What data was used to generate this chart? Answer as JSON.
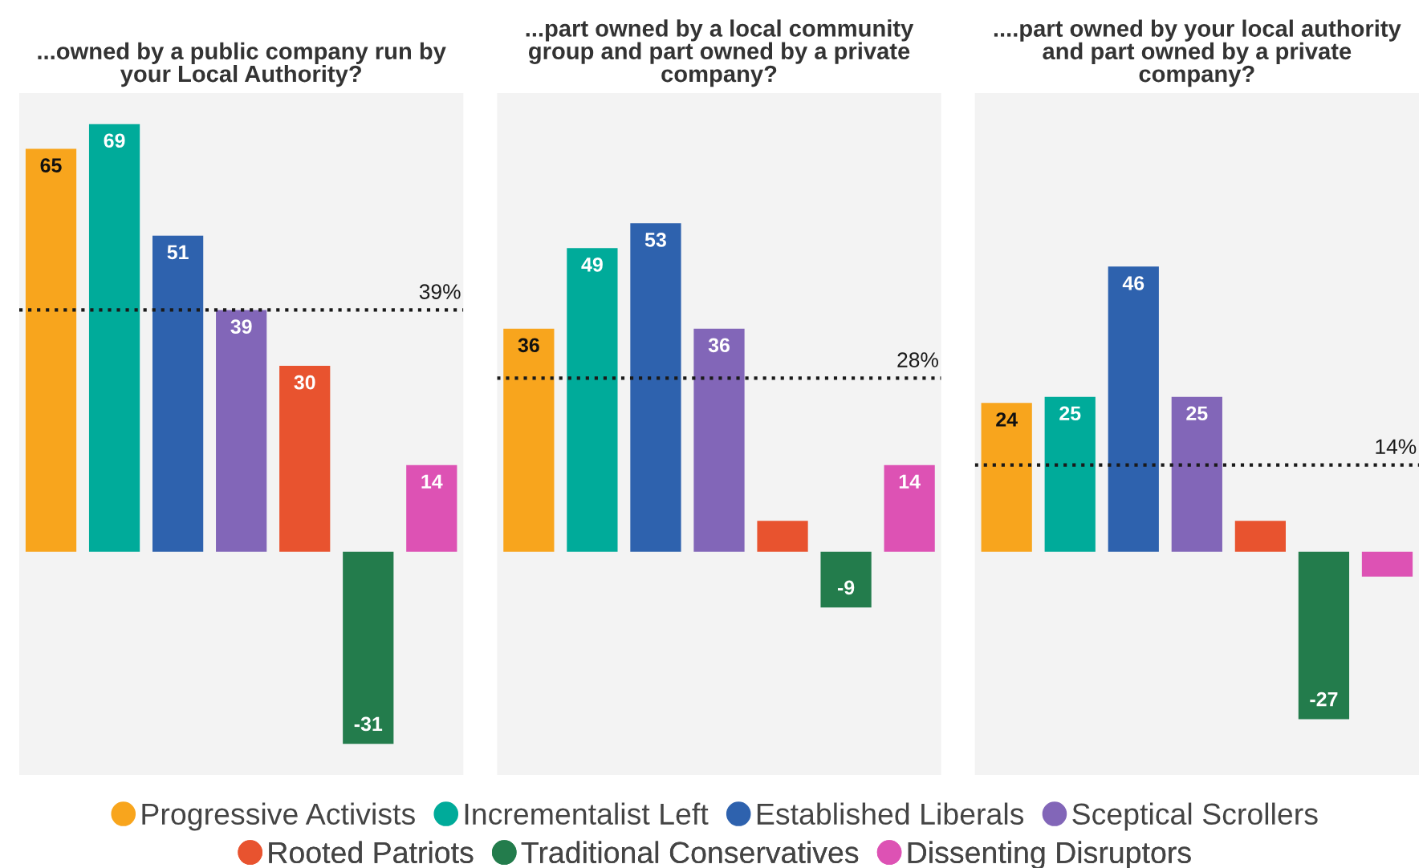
{
  "chart_data": [
    {
      "type": "bar",
      "title": "...owned by a public company run by\nyour Local Authority?",
      "categories": [
        null
      ],
      "legend": "bottom",
      "series": [
        {
          "name": "Progressive Activists",
          "color": "#f8a51d",
          "values": [
            65
          ],
          "value_labels": [
            "65"
          ]
        },
        {
          "name": "Incrementalist Left",
          "color": "#00ab9a",
          "values": [
            69
          ],
          "value_labels": [
            "69"
          ]
        },
        {
          "name": "Established Liberals",
          "color": "#2e62ae",
          "values": [
            51
          ],
          "value_labels": [
            "51"
          ]
        },
        {
          "name": "Sceptical Scrollers",
          "color": "#8266b8",
          "values": [
            39
          ],
          "value_labels": [
            "39"
          ]
        },
        {
          "name": "Rooted Patriots",
          "color": "#e8532f",
          "values": [
            30
          ],
          "value_labels": [
            "30"
          ]
        },
        {
          "name": "Traditional Conservatives",
          "color": "#237c4c",
          "values": [
            -31
          ],
          "value_labels": [
            "-31"
          ]
        },
        {
          "name": "Dissenting Disruptors",
          "color": "#dd52b4",
          "values": [
            14
          ],
          "value_labels": [
            "14"
          ]
        }
      ],
      "ref_lines": [
        {
          "axis": "y",
          "value": 39,
          "label": "39%",
          "color": "#1a1a1a",
          "line_style": "dotted"
        }
      ]
    },
    {
      "type": "bar",
      "title": "...part owned by a local community\ngroup and part owned by a private\ncompany?",
      "categories": [
        null
      ],
      "series": [
        {
          "color": "#f8a51d",
          "values": [
            36
          ],
          "value_labels": [
            "36"
          ]
        },
        {
          "color": "#00ab9a",
          "values": [
            49
          ],
          "value_labels": [
            "49"
          ]
        },
        {
          "color": "#2e62ae",
          "values": [
            53
          ],
          "value_labels": [
            "53"
          ]
        },
        {
          "color": "#8266b8",
          "values": [
            36
          ],
          "value_labels": [
            "36"
          ]
        },
        {
          "color": "#e8532f",
          "values": [
            5
          ],
          "value_labels": [
            null
          ]
        },
        {
          "color": "#237c4c",
          "values": [
            -9
          ],
          "value_labels": [
            "-9"
          ]
        },
        {
          "color": "#dd52b4",
          "values": [
            14
          ],
          "value_labels": [
            "14"
          ]
        }
      ],
      "ref_lines": [
        {
          "axis": "y",
          "value": 28,
          "label": "28%",
          "color": "#1a1a1a",
          "line_style": "dotted"
        }
      ]
    },
    {
      "type": "bar",
      "title": "....part owned by your local authority\nand part owned by a private\ncompany?",
      "categories": [
        null
      ],
      "series": [
        {
          "color": "#f8a51d",
          "values": [
            24
          ],
          "value_labels": [
            "24"
          ]
        },
        {
          "color": "#00ab9a",
          "values": [
            25
          ],
          "value_labels": [
            "25"
          ]
        },
        {
          "color": "#2e62ae",
          "values": [
            46
          ],
          "value_labels": [
            "46"
          ]
        },
        {
          "color": "#8266b8",
          "values": [
            25
          ],
          "value_labels": [
            "25"
          ]
        },
        {
          "color": "#e8532f",
          "values": [
            5
          ],
          "value_labels": [
            null
          ]
        },
        {
          "color": "#237c4c",
          "values": [
            -27
          ],
          "value_labels": [
            "-27"
          ]
        },
        {
          "color": "#dd52b4",
          "values": [
            -4
          ],
          "value_labels": [
            null
          ]
        }
      ],
      "ref_lines": [
        {
          "axis": "y",
          "value": 14,
          "label": "14%",
          "color": "#1a1a1a",
          "line_style": "dotted"
        }
      ]
    }
  ]
}
